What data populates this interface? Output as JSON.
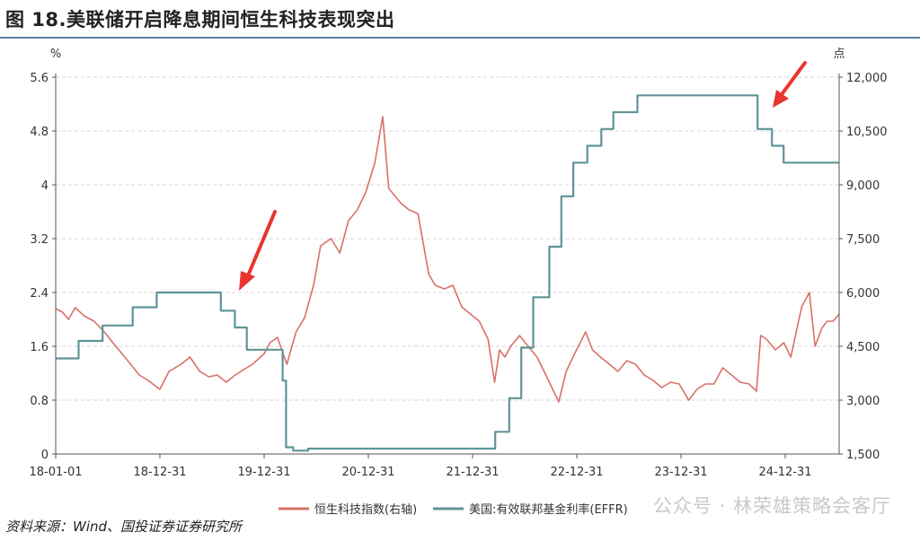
{
  "figure": {
    "title": "图 18.美联储开启降息期间恒生科技表现突出",
    "source": "资料来源：Wind、国投证券证券研究所",
    "watermark": "公众号 · 林荣雄策略会客厅"
  },
  "chart_data": {
    "type": "line",
    "x_type": "date",
    "x_range": [
      "2018-01-01",
      "2025-07-01"
    ],
    "x_tick_labels": [
      "18-01-01",
      "18-12-31",
      "19-12-31",
      "20-12-31",
      "21-12-31",
      "22-12-31",
      "23-12-31",
      "24-12-31"
    ],
    "y_left": {
      "unit": "%",
      "range": [
        0,
        5.6
      ],
      "tick_labels": [
        "0",
        "0.8",
        "1.6",
        "2.4",
        "3.2",
        "4",
        "4.8",
        "5.6"
      ]
    },
    "y_right": {
      "unit": "点",
      "range": [
        1500,
        12000
      ],
      "tick_labels": [
        "1,500",
        "3,000",
        "4,500",
        "6,000",
        "7,500",
        "9,000",
        "10,500",
        "12,000"
      ]
    },
    "grid": true,
    "legend_position": "bottom",
    "series": [
      {
        "name": "恒生科技指数(右轴)",
        "axis": "right",
        "color": "#d9706a",
        "points": [
          [
            "2018-01-01",
            5550
          ],
          [
            "2018-01-25",
            5450
          ],
          [
            "2018-02-15",
            5250
          ],
          [
            "2018-03-10",
            5580
          ],
          [
            "2018-04-10",
            5350
          ],
          [
            "2018-05-15",
            5200
          ],
          [
            "2018-06-20",
            4900
          ],
          [
            "2018-07-20",
            4600
          ],
          [
            "2018-08-20",
            4300
          ],
          [
            "2018-09-20",
            4000
          ],
          [
            "2018-10-20",
            3700
          ],
          [
            "2018-11-20",
            3550
          ],
          [
            "2018-12-31",
            3300
          ],
          [
            "2019-02-01",
            3800
          ],
          [
            "2019-03-15",
            4000
          ],
          [
            "2019-04-15",
            4200
          ],
          [
            "2019-05-20",
            3800
          ],
          [
            "2019-06-20",
            3650
          ],
          [
            "2019-07-20",
            3700
          ],
          [
            "2019-08-20",
            3500
          ],
          [
            "2019-09-20",
            3700
          ],
          [
            "2019-10-20",
            3850
          ],
          [
            "2019-11-20",
            4000
          ],
          [
            "2019-12-31",
            4300
          ],
          [
            "2020-01-20",
            4600
          ],
          [
            "2020-02-15",
            4750
          ],
          [
            "2020-03-19",
            4000
          ],
          [
            "2020-04-20",
            4900
          ],
          [
            "2020-05-20",
            5300
          ],
          [
            "2020-06-20",
            6200
          ],
          [
            "2020-07-15",
            7300
          ],
          [
            "2020-08-20",
            7500
          ],
          [
            "2020-09-20",
            7100
          ],
          [
            "2020-10-20",
            8000
          ],
          [
            "2020-11-20",
            8300
          ],
          [
            "2020-12-20",
            8800
          ],
          [
            "2021-01-20",
            9600
          ],
          [
            "2021-02-17",
            10900
          ],
          [
            "2021-03-10",
            8900
          ],
          [
            "2021-04-20",
            8500
          ],
          [
            "2021-05-20",
            8300
          ],
          [
            "2021-06-20",
            8200
          ],
          [
            "2021-07-28",
            6500
          ],
          [
            "2021-08-20",
            6200
          ],
          [
            "2021-09-20",
            6100
          ],
          [
            "2021-10-20",
            6200
          ],
          [
            "2021-11-20",
            5600
          ],
          [
            "2021-12-20",
            5400
          ],
          [
            "2022-01-20",
            5200
          ],
          [
            "2022-02-20",
            4700
          ],
          [
            "2022-03-15",
            3500
          ],
          [
            "2022-04-01",
            4400
          ],
          [
            "2022-04-20",
            4200
          ],
          [
            "2022-05-10",
            4500
          ],
          [
            "2022-06-10",
            4800
          ],
          [
            "2022-07-10",
            4500
          ],
          [
            "2022-08-10",
            4200
          ],
          [
            "2022-09-10",
            3700
          ],
          [
            "2022-10-25",
            2950
          ],
          [
            "2022-11-20",
            3800
          ],
          [
            "2022-12-20",
            4300
          ],
          [
            "2023-01-27",
            4900
          ],
          [
            "2023-02-20",
            4400
          ],
          [
            "2023-03-20",
            4200
          ],
          [
            "2023-04-20",
            4000
          ],
          [
            "2023-05-20",
            3800
          ],
          [
            "2023-06-20",
            4100
          ],
          [
            "2023-07-20",
            4000
          ],
          [
            "2023-08-20",
            3700
          ],
          [
            "2023-09-20",
            3550
          ],
          [
            "2023-10-20",
            3350
          ],
          [
            "2023-11-20",
            3500
          ],
          [
            "2023-12-20",
            3450
          ],
          [
            "2024-01-22",
            3000
          ],
          [
            "2024-02-20",
            3300
          ],
          [
            "2024-03-20",
            3450
          ],
          [
            "2024-04-20",
            3450
          ],
          [
            "2024-05-20",
            3900
          ],
          [
            "2024-06-20",
            3700
          ],
          [
            "2024-07-20",
            3500
          ],
          [
            "2024-08-20",
            3450
          ],
          [
            "2024-09-15",
            3250
          ],
          [
            "2024-09-30",
            4800
          ],
          [
            "2024-10-20",
            4700
          ],
          [
            "2024-11-20",
            4400
          ],
          [
            "2024-12-20",
            4600
          ],
          [
            "2025-01-13",
            4200
          ],
          [
            "2025-02-20",
            5600
          ],
          [
            "2025-03-19",
            6000
          ],
          [
            "2025-04-08",
            4500
          ],
          [
            "2025-05-01",
            5000
          ],
          [
            "2025-05-20",
            5200
          ],
          [
            "2025-06-10",
            5200
          ],
          [
            "2025-07-01",
            5400
          ]
        ]
      },
      {
        "name": "美国:有效联邦基金利率(EFFR)",
        "axis": "left",
        "color": "#5f9499",
        "step": true,
        "points": [
          [
            "2018-01-01",
            1.42
          ],
          [
            "2018-03-22",
            1.68
          ],
          [
            "2018-06-14",
            1.91
          ],
          [
            "2018-09-27",
            2.18
          ],
          [
            "2018-12-20",
            2.4
          ],
          [
            "2019-08-01",
            2.13
          ],
          [
            "2019-09-19",
            1.88
          ],
          [
            "2019-10-31",
            1.55
          ],
          [
            "2020-03-04",
            1.09
          ],
          [
            "2020-03-16",
            0.1
          ],
          [
            "2020-04-10",
            0.05
          ],
          [
            "2020-06-01",
            0.08
          ],
          [
            "2021-06-17",
            0.08
          ],
          [
            "2022-03-17",
            0.33
          ],
          [
            "2022-05-05",
            0.83
          ],
          [
            "2022-06-16",
            1.58
          ],
          [
            "2022-07-28",
            2.33
          ],
          [
            "2022-09-22",
            3.08
          ],
          [
            "2022-11-03",
            3.83
          ],
          [
            "2022-12-15",
            4.33
          ],
          [
            "2023-02-02",
            4.58
          ],
          [
            "2023-03-23",
            4.83
          ],
          [
            "2023-05-04",
            5.08
          ],
          [
            "2023-07-27",
            5.33
          ],
          [
            "2024-09-19",
            4.83
          ],
          [
            "2024-11-08",
            4.58
          ],
          [
            "2024-12-19",
            4.33
          ],
          [
            "2025-07-01",
            4.33
          ]
        ]
      }
    ]
  }
}
